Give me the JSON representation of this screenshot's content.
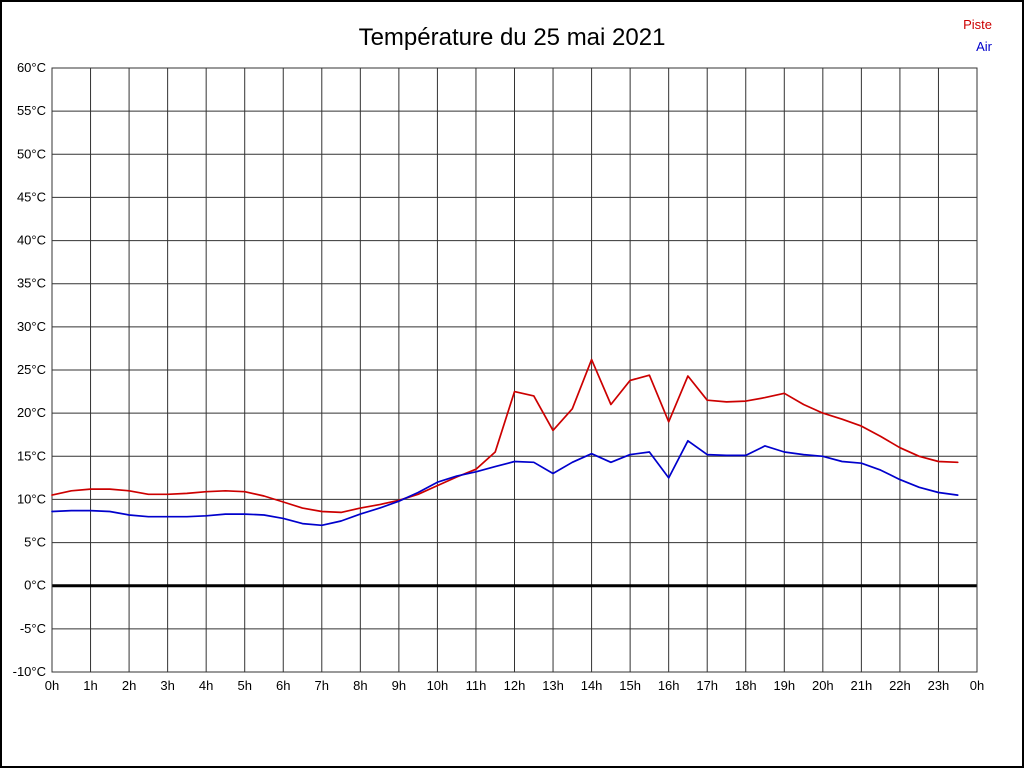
{
  "chart_data": {
    "type": "line",
    "title": "Température du 25 mai 2021",
    "xlabel": "",
    "ylabel": "",
    "xlim": [
      0,
      24
    ],
    "ylim": [
      -10,
      60
    ],
    "y_step": 5,
    "grid": true,
    "zero_line": true,
    "legend_position": "top-right",
    "x_ticks": [
      "0h",
      "1h",
      "2h",
      "3h",
      "4h",
      "5h",
      "6h",
      "7h",
      "8h",
      "9h",
      "10h",
      "11h",
      "12h",
      "13h",
      "14h",
      "15h",
      "16h",
      "17h",
      "18h",
      "19h",
      "20h",
      "21h",
      "22h",
      "23h",
      "0h"
    ],
    "y_ticks": [
      "60°C",
      "55°C",
      "50°C",
      "45°C",
      "40°C",
      "35°C",
      "30°C",
      "25°C",
      "20°C",
      "15°C",
      "10°C",
      "5°C",
      "0°C",
      "-5°C",
      "-10°C"
    ],
    "x": [
      0,
      0.5,
      1,
      1.5,
      2,
      2.5,
      3,
      3.5,
      4,
      4.5,
      5,
      5.5,
      6,
      6.5,
      7,
      7.5,
      8,
      8.5,
      9,
      9.5,
      10,
      10.5,
      11,
      11.5,
      12,
      12.5,
      13,
      13.5,
      14,
      14.5,
      15,
      15.5,
      16,
      16.5,
      17,
      17.5,
      18,
      18.5,
      19,
      19.5,
      20,
      20.5,
      21,
      21.5,
      22,
      22.5,
      23,
      23.5
    ],
    "series": [
      {
        "name": "Piste",
        "color": "#cc0000",
        "values": [
          10.5,
          11.0,
          11.2,
          11.2,
          11.0,
          10.6,
          10.6,
          10.7,
          10.9,
          11.0,
          10.9,
          10.4,
          9.7,
          9.0,
          8.6,
          8.5,
          9.0,
          9.4,
          9.9,
          10.6,
          11.6,
          12.6,
          13.5,
          15.5,
          22.5,
          22.0,
          18.0,
          20.5,
          26.2,
          21.0,
          23.8,
          24.4,
          19.0,
          24.3,
          21.5,
          21.3,
          21.4,
          21.8,
          22.3,
          21.0,
          20.0,
          19.3,
          18.5,
          17.3,
          16.0,
          15.0,
          14.4,
          14.3
        ]
      },
      {
        "name": "Air",
        "color": "#0000cc",
        "values": [
          8.6,
          8.7,
          8.7,
          8.6,
          8.2,
          8.0,
          8.0,
          8.0,
          8.1,
          8.3,
          8.3,
          8.2,
          7.8,
          7.2,
          7.0,
          7.5,
          8.3,
          9.0,
          9.8,
          10.8,
          12.0,
          12.7,
          13.2,
          13.8,
          14.4,
          14.3,
          13.0,
          14.3,
          15.3,
          14.3,
          15.2,
          15.5,
          12.5,
          16.8,
          15.2,
          15.1,
          15.1,
          16.2,
          15.5,
          15.2,
          15.0,
          14.4,
          14.2,
          13.4,
          12.3,
          11.4,
          10.8,
          10.5
        ]
      }
    ]
  },
  "legend": {
    "piste_label": "Piste",
    "air_label": "Air"
  },
  "colors": {
    "piste": "#cc0000",
    "air": "#0000cc",
    "grid": "#333333",
    "zero_line": "#000000",
    "text": "#000000"
  }
}
